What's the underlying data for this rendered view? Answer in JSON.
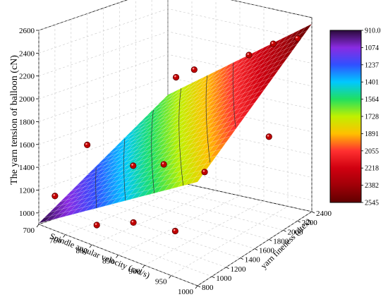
{
  "chart_data": {
    "type": "surface3d",
    "z_axis": {
      "label": "The yarn tension of balloon (cN)",
      "range": [
        900,
        2600
      ],
      "ticks": [
        "1000",
        "1200",
        "1400",
        "1600",
        "1800",
        "2000",
        "2200",
        "2400",
        "2600"
      ]
    },
    "x_axis": {
      "label": "Spindle angular velocity (rad/s)",
      "range": [
        700,
        1000
      ],
      "ticks": [
        "700",
        "750",
        "800",
        "850",
        "900",
        "950",
        "1000"
      ]
    },
    "y_axis": {
      "label": "yarn fineness (dtex)",
      "range": [
        800,
        2400
      ],
      "ticks": [
        "800",
        "1000",
        "1200",
        "1400",
        "1600",
        "1800",
        "2000",
        "2200",
        "2400"
      ]
    },
    "colorbar": {
      "labels": [
        "910.0",
        "1074",
        "1237",
        "1401",
        "1564",
        "1728",
        "1891",
        "2055",
        "2218",
        "2382",
        "2545"
      ],
      "colors": [
        "#2a0a3a",
        "#8a2be2",
        "#3050ff",
        "#00c8ff",
        "#20e060",
        "#c0f000",
        "#ffc000",
        "#ff3030",
        "#d00010",
        "#a00008",
        "#600000"
      ]
    },
    "surface": {
      "model": "tension = 910 + 1635 * (0.55*s + 0.45*f)",
      "contour_levels": [
        1237,
        1401,
        1564,
        1728,
        1891,
        2055
      ]
    },
    "points": [
      {
        "x": 700,
        "y": 1000,
        "z": 1100
      },
      {
        "x": 700,
        "y": 1400,
        "z": 1450
      },
      {
        "x": 780,
        "y": 1000,
        "z": 980
      },
      {
        "x": 790,
        "y": 1400,
        "z": 1400
      },
      {
        "x": 850,
        "y": 1000,
        "z": 1120
      },
      {
        "x": 850,
        "y": 1400,
        "z": 1500
      },
      {
        "x": 930,
        "y": 1000,
        "z": 1180
      },
      {
        "x": 930,
        "y": 1400,
        "z": 1550
      },
      {
        "x": 750,
        "y": 2200,
        "z": 1900
      },
      {
        "x": 850,
        "y": 1800,
        "z": 2200
      },
      {
        "x": 900,
        "y": 2200,
        "z": 2250
      },
      {
        "x": 950,
        "y": 2200,
        "z": 2400
      },
      {
        "x": 1000,
        "y": 2200,
        "z": 2500
      },
      {
        "x": 1000,
        "y": 1800,
        "z": 1800
      }
    ]
  }
}
